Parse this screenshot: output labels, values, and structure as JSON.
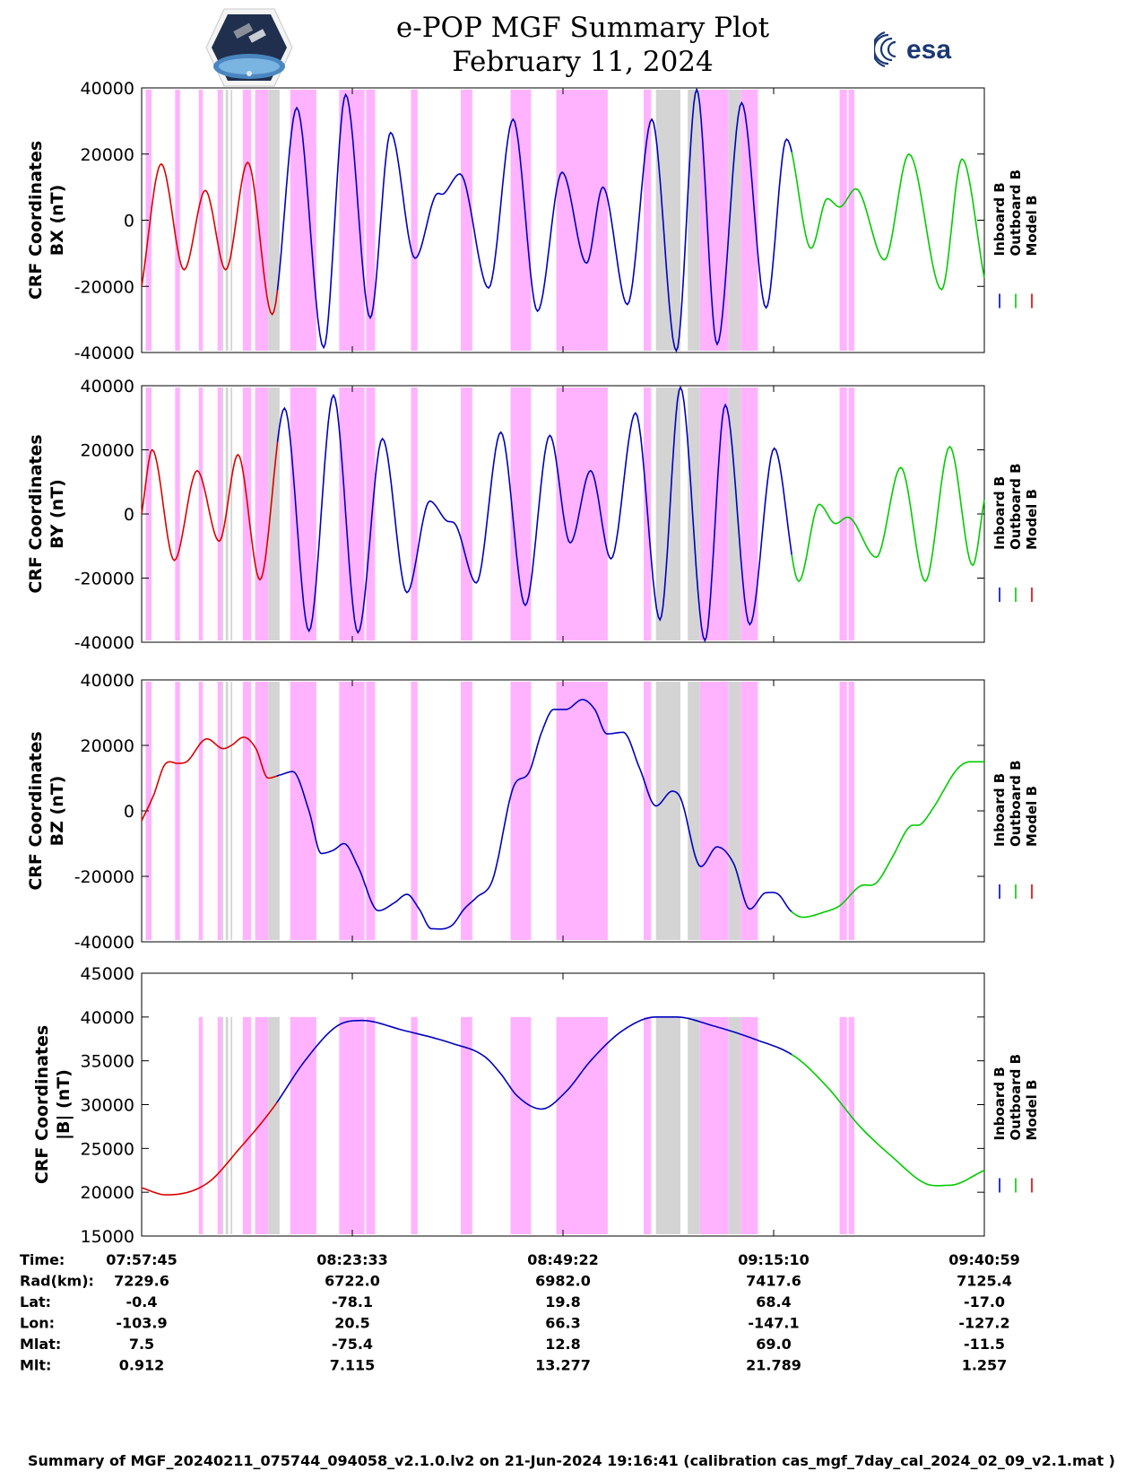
{
  "title": "e-POP MGF Summary Plot",
  "date": "February 11, 2024",
  "logos": {
    "left": "cassiope-satellite-emblem",
    "right": "esa-logo",
    "right_text": "esa"
  },
  "legend": [
    "Inboard B",
    "Outboard B",
    "Model B"
  ],
  "colors": {
    "inboard": "#0000c0",
    "outboard": "#00cc00",
    "model": "#dd0000",
    "data_gap": "#ffb3ff",
    "mode_change": "#d4d4d4"
  },
  "panels": [
    {
      "name": "bx",
      "ylabel_line1": "CRF Coordinates",
      "ylabel_line2": "BX (nT)",
      "ylim": [
        -40000,
        40000
      ],
      "yticks": [
        "40000",
        "20000",
        "0",
        "-20000",
        "-40000"
      ]
    },
    {
      "name": "by",
      "ylabel_line1": "CRF Coordinates",
      "ylabel_line2": "BY (nT)",
      "ylim": [
        -40000,
        40000
      ],
      "yticks": [
        "40000",
        "20000",
        "0",
        "-20000",
        "-40000"
      ]
    },
    {
      "name": "bz",
      "ylabel_line1": "CRF Coordinates",
      "ylabel_line2": "BZ (nT)",
      "ylim": [
        -40000,
        40000
      ],
      "yticks": [
        "40000",
        "20000",
        "0",
        "-20000",
        "-40000"
      ]
    },
    {
      "name": "bmag",
      "ylabel_line1": "CRF Coordinates",
      "ylabel_line2": "|B| (nT)",
      "ylim": [
        15000,
        45000
      ],
      "yticks": [
        "45000",
        "40000",
        "35000",
        "30000",
        "25000",
        "20000",
        "15000"
      ]
    }
  ],
  "ephemeris": {
    "row_labels": [
      "Time:",
      "Rad(km):",
      "Lat:",
      "Lon:",
      "Mlat:",
      "Mlt:"
    ],
    "columns": [
      [
        "07:57:45",
        "7229.6",
        "-0.4",
        "-103.9",
        "7.5",
        "0.912"
      ],
      [
        "08:23:33",
        "6722.0",
        "-78.1",
        "20.5",
        "-75.4",
        "7.115"
      ],
      [
        "08:49:22",
        "6982.0",
        "19.8",
        "66.3",
        "12.8",
        "13.277"
      ],
      [
        "09:15:10",
        "7417.6",
        "68.4",
        "-147.1",
        "69.0",
        "21.789"
      ],
      [
        "09:40:59",
        "7125.4",
        "-17.0",
        "-127.2",
        "-11.5",
        "1.257"
      ]
    ]
  },
  "footer": "Summary of MGF_20240211_075744_094058_v2.1.0.lv2 on 21-Jun-2024 19:16:41 (calibration cas_mgf_7day_cal_2024_02_09_v2.1.mat )",
  "chart_data": {
    "type": "line",
    "x_unit": "minutes after 07:57:45",
    "x_range": [
      0,
      103.23
    ],
    "x_tick_labels": [
      "07:57:45",
      "08:23:33",
      "08:49:22",
      "09:15:10",
      "09:40:59"
    ],
    "series_segments": {
      "model_until_min": 16.5,
      "inboard_until_min": 79.6
    },
    "shading": {
      "data_gap": [
        [
          0.5,
          1.2
        ],
        [
          4.1,
          4.7
        ],
        [
          7.0,
          7.5
        ],
        [
          9.3,
          9.8
        ],
        [
          12.4,
          13.4
        ],
        [
          13.9,
          15.5
        ],
        [
          18.2,
          21.4
        ],
        [
          24.2,
          27.3
        ],
        [
          27.5,
          28.6
        ],
        [
          33.0,
          33.8
        ],
        [
          39.1,
          40.5
        ],
        [
          45.2,
          47.7
        ],
        [
          50.8,
          57.1
        ],
        [
          61.5,
          62.4
        ],
        [
          68.4,
          71.9
        ],
        [
          73.4,
          75.5
        ],
        [
          85.5,
          86.4
        ],
        [
          86.6,
          87.3
        ]
      ],
      "mode_change": [
        [
          9.8,
          10.0
        ],
        [
          10.3,
          10.6
        ],
        [
          10.9,
          11.1
        ],
        [
          15.5,
          16.9
        ],
        [
          63.0,
          66.0
        ],
        [
          66.9,
          68.4
        ],
        [
          71.9,
          73.4
        ]
      ]
    },
    "bmag_gaps_start_at_min": 6.5,
    "series": {
      "bx": [
        [
          0,
          -20000
        ],
        [
          2.4,
          17000
        ],
        [
          5.2,
          -15000
        ],
        [
          7.8,
          9000
        ],
        [
          10.3,
          -15000
        ],
        [
          13.0,
          17500
        ],
        [
          16.0,
          -28500
        ],
        [
          19.0,
          34000
        ],
        [
          22.3,
          -38500
        ],
        [
          25.0,
          38000
        ],
        [
          28.0,
          -29500
        ],
        [
          30.5,
          26500
        ],
        [
          33.5,
          -11500
        ],
        [
          36.0,
          7500
        ],
        [
          37.0,
          8000
        ],
        [
          39.0,
          14000
        ],
        [
          42.5,
          -20500
        ],
        [
          45.5,
          30500
        ],
        [
          48.5,
          -27500
        ],
        [
          51.5,
          14500
        ],
        [
          54.5,
          -13000
        ],
        [
          56.5,
          10000
        ],
        [
          59.5,
          -25500
        ],
        [
          62.5,
          30500
        ],
        [
          65.5,
          -39500
        ],
        [
          68.0,
          39500
        ],
        [
          70.5,
          -37500
        ],
        [
          73.5,
          35500
        ],
        [
          76.5,
          -26500
        ],
        [
          79.0,
          24500
        ],
        [
          82.0,
          -8500
        ],
        [
          84.0,
          6500
        ],
        [
          85.5,
          4000
        ],
        [
          87.5,
          9500
        ],
        [
          91.0,
          -12000
        ],
        [
          94.0,
          20000
        ],
        [
          98.0,
          -21000
        ],
        [
          100.5,
          18500
        ],
        [
          103.23,
          -17500
        ]
      ],
      "by": [
        [
          0,
          0
        ],
        [
          1.3,
          20000
        ],
        [
          4.0,
          -14500
        ],
        [
          6.8,
          13500
        ],
        [
          9.5,
          -8500
        ],
        [
          11.8,
          18500
        ],
        [
          14.5,
          -20500
        ],
        [
          17.5,
          33000
        ],
        [
          20.5,
          -36500
        ],
        [
          23.5,
          37000
        ],
        [
          26.5,
          -37000
        ],
        [
          29.5,
          23500
        ],
        [
          32.5,
          -24500
        ],
        [
          35.3,
          4000
        ],
        [
          37.3,
          -2000
        ],
        [
          38.5,
          -3500
        ],
        [
          41.0,
          -21500
        ],
        [
          44.0,
          25500
        ],
        [
          47.0,
          -28500
        ],
        [
          50.0,
          24500
        ],
        [
          52.5,
          -9000
        ],
        [
          55.0,
          13500
        ],
        [
          57.5,
          -14000
        ],
        [
          60.5,
          31500
        ],
        [
          63.5,
          -33000
        ],
        [
          66.0,
          39500
        ],
        [
          69.0,
          -39500
        ],
        [
          71.5,
          34000
        ],
        [
          74.5,
          -34500
        ],
        [
          77.5,
          20500
        ],
        [
          80.5,
          -21000
        ],
        [
          83.0,
          3000
        ],
        [
          85.0,
          -3000
        ],
        [
          86.5,
          -1000
        ],
        [
          90.0,
          -13500
        ],
        [
          93.0,
          14500
        ],
        [
          96.0,
          -21000
        ],
        [
          99.0,
          21000
        ],
        [
          101.8,
          -16000
        ],
        [
          103.23,
          4500
        ]
      ],
      "bz": [
        [
          0,
          -3000
        ],
        [
          1.5,
          5000
        ],
        [
          2.8,
          14000
        ],
        [
          4.5,
          14500
        ],
        [
          5.5,
          15000
        ],
        [
          8.0,
          22000
        ],
        [
          10.0,
          19000
        ],
        [
          11.0,
          20000
        ],
        [
          12.5,
          22500
        ],
        [
          14.0,
          19000
        ],
        [
          15.5,
          10000
        ],
        [
          17.0,
          11000
        ],
        [
          18.5,
          12000
        ],
        [
          20.5,
          0
        ],
        [
          22.0,
          -13000
        ],
        [
          23.5,
          -12000
        ],
        [
          24.8,
          -10000
        ],
        [
          26.5,
          -17000
        ],
        [
          29.0,
          -30500
        ],
        [
          31.0,
          -28000
        ],
        [
          32.5,
          -25500
        ],
        [
          34.0,
          -30000
        ],
        [
          35.5,
          -36000
        ],
        [
          38.0,
          -35000
        ],
        [
          39.5,
          -30000
        ],
        [
          41.0,
          -26500
        ],
        [
          43.0,
          -21000
        ],
        [
          45.5,
          7000
        ],
        [
          47.5,
          12000
        ],
        [
          49.0,
          24000
        ],
        [
          50.5,
          31000
        ],
        [
          52.0,
          31000
        ],
        [
          54.0,
          34000
        ],
        [
          55.5,
          31000
        ],
        [
          57.0,
          23500
        ],
        [
          59.0,
          24000
        ],
        [
          61.0,
          13000
        ],
        [
          63.0,
          1500
        ],
        [
          65.0,
          6000
        ],
        [
          66.0,
          4000
        ],
        [
          68.5,
          -17000
        ],
        [
          70.5,
          -11000
        ],
        [
          72.5,
          -16000
        ],
        [
          74.5,
          -30000
        ],
        [
          76.5,
          -25000
        ],
        [
          78.0,
          -25500
        ],
        [
          79.5,
          -30500
        ],
        [
          81.0,
          -32500
        ],
        [
          83.5,
          -31000
        ],
        [
          85.5,
          -29000
        ],
        [
          88.0,
          -23000
        ],
        [
          90.0,
          -22000
        ],
        [
          92.0,
          -14000
        ],
        [
          94.0,
          -5000
        ],
        [
          95.5,
          -4000
        ],
        [
          97.0,
          1000
        ],
        [
          100.0,
          13000
        ],
        [
          101.5,
          15000
        ],
        [
          103.23,
          15000
        ]
      ],
      "bmag": [
        [
          0,
          20500
        ],
        [
          3.0,
          19700
        ],
        [
          8.0,
          21000
        ],
        [
          12.0,
          25000
        ],
        [
          16.0,
          29500
        ],
        [
          20.0,
          35000
        ],
        [
          24.0,
          39000
        ],
        [
          27.0,
          39600
        ],
        [
          32.0,
          38500
        ],
        [
          38.0,
          37000
        ],
        [
          42.0,
          35500
        ],
        [
          44.0,
          33500
        ],
        [
          46.0,
          31000
        ],
        [
          49.0,
          29500
        ],
        [
          52.0,
          31500
        ],
        [
          55.0,
          35000
        ],
        [
          59.0,
          38500
        ],
        [
          63.0,
          40000
        ],
        [
          65.5,
          40000
        ],
        [
          70.0,
          39000
        ],
        [
          75.0,
          37500
        ],
        [
          80.0,
          35500
        ],
        [
          84.0,
          32000
        ],
        [
          88.0,
          27500
        ],
        [
          92.0,
          24000
        ],
        [
          96.0,
          21000
        ],
        [
          99.0,
          20800
        ],
        [
          103.23,
          22500
        ]
      ]
    }
  }
}
